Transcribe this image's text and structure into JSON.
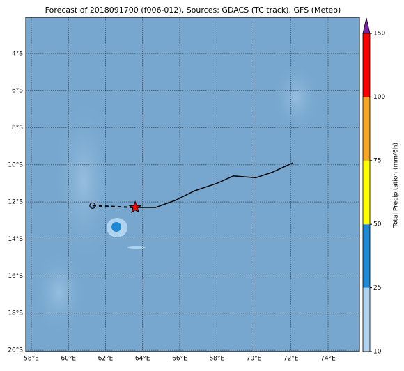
{
  "chart_data": {
    "type": "map",
    "title": "Forecast of 2018091700 (f006-012), Sources: GDACS (TC track), GFS (Meteo)",
    "xlim": [
      57.7,
      75.69
    ],
    "ylim": [
      -20.07,
      -2.05
    ],
    "xticks": [
      {
        "value": 58,
        "label": "58°E"
      },
      {
        "value": 60,
        "label": "60°E"
      },
      {
        "value": 62,
        "label": "62°E"
      },
      {
        "value": 64,
        "label": "64°E"
      },
      {
        "value": 66,
        "label": "66°E"
      },
      {
        "value": 68,
        "label": "68°E"
      },
      {
        "value": 70,
        "label": "70°E"
      },
      {
        "value": 72,
        "label": "72°E"
      },
      {
        "value": 74,
        "label": "74°E"
      }
    ],
    "yticks": [
      {
        "value": -4,
        "label": "4°S"
      },
      {
        "value": -6,
        "label": "6°S"
      },
      {
        "value": -8,
        "label": "8°S"
      },
      {
        "value": -10,
        "label": "10°S"
      },
      {
        "value": -12,
        "label": "12°S"
      },
      {
        "value": -14,
        "label": "14°S"
      },
      {
        "value": -16,
        "label": "16°S"
      },
      {
        "value": -18,
        "label": "18°S"
      },
      {
        "value": -20,
        "label": "20°S"
      }
    ],
    "grid": true,
    "track": {
      "x": [
        63.6,
        64.7,
        65.8,
        66.8,
        68.0,
        68.9,
        70.1,
        71.0,
        72.1
      ],
      "y": [
        -12.3,
        -12.3,
        -11.9,
        -11.4,
        -11.0,
        -10.6,
        -10.7,
        -10.4,
        -9.9
      ],
      "color": "#000000"
    },
    "forecast_track": {
      "x": [
        61.3,
        63.6
      ],
      "y": [
        -12.2,
        -12.3
      ],
      "color": "#000000"
    },
    "current_marker_color": "#ff0000",
    "colorbar": {
      "label": "Total Precipitation (mm/6h)",
      "levels": [
        10,
        25,
        50,
        75,
        100,
        150
      ],
      "colors": [
        "#b0d4f0",
        "#1f8ad6",
        "#ffff00",
        "#f5a623",
        "#ff0000"
      ],
      "extend_color": "#7b1fa2"
    }
  }
}
